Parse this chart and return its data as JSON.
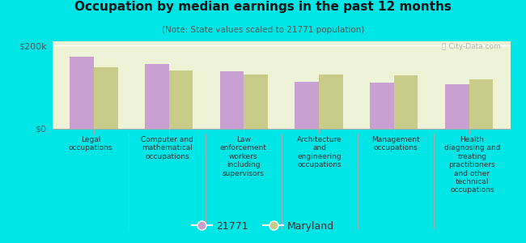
{
  "title": "Occupation by median earnings in the past 12 months",
  "subtitle": "(Note: State values scaled to 21771 population)",
  "categories": [
    "Legal\noccupations",
    "Computer and\nmathematical\noccupations",
    "Law\nenforcement\nworkers\nincluding\nsupervisors",
    "Architecture\nand\nengineering\noccupations",
    "Management\noccupations",
    "Health\ndiagnosing and\ntreating\npractitioners\nand other\ntechnical\noccupations"
  ],
  "values_21771": [
    173000,
    155000,
    138000,
    112000,
    110000,
    106000
  ],
  "values_maryland": [
    148000,
    140000,
    130000,
    130000,
    128000,
    118000
  ],
  "color_21771": "#c8a0d2",
  "color_maryland": "#c8cc88",
  "background_chart": "#eef3d8",
  "background_fig": "#00e5e5",
  "ylabel_text": "$200k",
  "y0_text": "$0",
  "ylim": [
    0,
    210000
  ],
  "yticks": [
    0,
    200000
  ],
  "legend_label_21771": "21771",
  "legend_label_maryland": "Maryland",
  "watermark": "ⓘ City-Data.com"
}
